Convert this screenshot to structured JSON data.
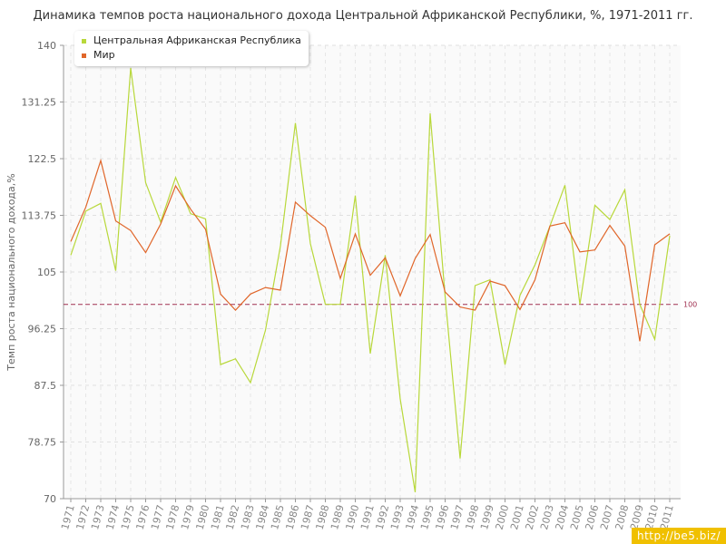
{
  "title": "Динамика темпов роста национального дохода Центральной Африканской Республики, %, 1971-2011 гг.",
  "watermark": "http://be5.biz/",
  "legend": {
    "items": [
      {
        "label": "Центральная Африканская Республика",
        "color": "#b8d83a"
      },
      {
        "label": "Мир",
        "color": "#e0662a"
      }
    ]
  },
  "chart_data": {
    "type": "line",
    "title": "Динамика темпов роста национального дохода Центральной Африканской Республики, %, 1971-2011 гг.",
    "xlabel": "",
    "ylabel": "Темп роста национального дохода,%",
    "ylim": [
      70,
      140
    ],
    "yticks": [
      "70",
      "78.75",
      "87.5",
      "96.25",
      "105",
      "113.75",
      "122.5",
      "131.25",
      "140"
    ],
    "x": [
      1971,
      1972,
      1973,
      1974,
      1975,
      1976,
      1977,
      1978,
      1979,
      1980,
      1981,
      1982,
      1983,
      1984,
      1985,
      1986,
      1987,
      1988,
      1989,
      1990,
      1991,
      1992,
      1993,
      1994,
      1995,
      1996,
      1997,
      1998,
      1999,
      2000,
      2001,
      2002,
      2003,
      2004,
      2005,
      2006,
      2007,
      2008,
      2009,
      2010,
      2011
    ],
    "reference_line": {
      "value": 100,
      "label": "100",
      "color": "#a03050"
    },
    "series": [
      {
        "name": "Центральная Африканская Республика",
        "color": "#b8d83a",
        "values": [
          107.6,
          114.4,
          115.6,
          105.2,
          136.5,
          118.8,
          112.7,
          119.6,
          114.0,
          113.2,
          90.7,
          91.6,
          87.9,
          96.0,
          109.0,
          128.0,
          109.4,
          100.0,
          100.0,
          116.8,
          92.4,
          107.6,
          85.4,
          71.0,
          129.5,
          101.2,
          76.2,
          102.9,
          103.8,
          90.7,
          101.4,
          106.1,
          112.1,
          118.4,
          100.0,
          115.3,
          113.1,
          117.7,
          100.0,
          94.6,
          110.6
        ]
      },
      {
        "name": "Мир",
        "color": "#e0662a",
        "values": [
          109.7,
          115.0,
          122.2,
          112.9,
          111.4,
          108.0,
          112.4,
          118.3,
          114.7,
          111.6,
          101.6,
          99.1,
          101.6,
          102.6,
          102.2,
          115.8,
          113.7,
          111.9,
          104.0,
          110.9,
          104.5,
          107.2,
          101.3,
          107.1,
          110.8,
          101.9,
          99.6,
          99.1,
          103.6,
          102.9,
          99.2,
          103.8,
          112.1,
          112.6,
          108.1,
          108.4,
          112.2,
          109.0,
          94.3,
          109.2,
          110.9
        ]
      }
    ]
  }
}
